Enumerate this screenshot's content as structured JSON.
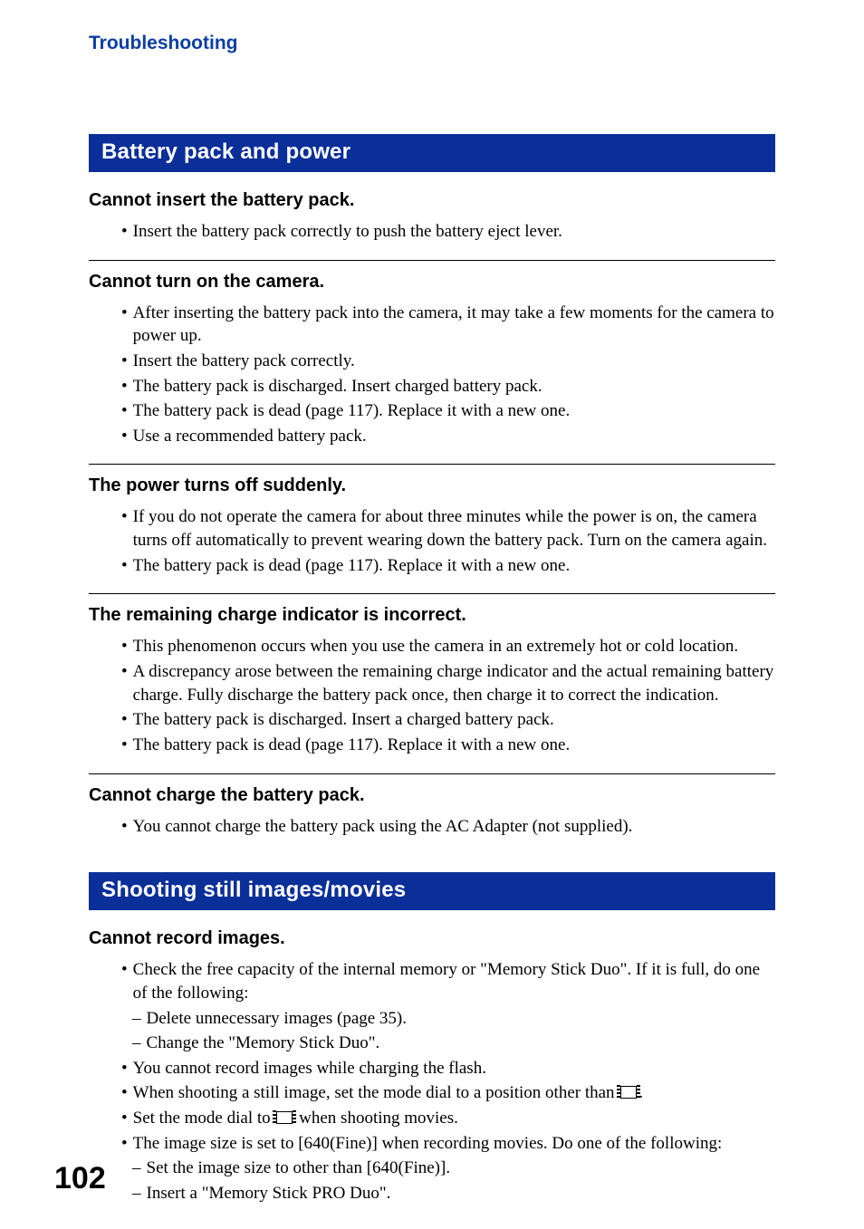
{
  "colors": {
    "brand_blue_text": "#0b3ea2",
    "section_bar_bg": "#0b2f99",
    "section_bar_text": "#ffffff",
    "body_text": "#000000",
    "background": "#ffffff",
    "rule": "#000000"
  },
  "typography": {
    "breadcrumb_fontsize_pt": 16,
    "section_bar_fontsize_pt": 18,
    "issue_title_fontsize_pt": 15,
    "body_fontsize_pt": 14,
    "page_number_fontsize_pt": 26,
    "heading_family": "Arial",
    "body_family": "Times New Roman"
  },
  "page": {
    "breadcrumb": "Troubleshooting",
    "number": "102"
  },
  "sections": [
    {
      "title": "Battery pack and power",
      "issues": [
        {
          "title": "Cannot insert the battery pack.",
          "bullets": [
            {
              "text": "Insert the battery pack correctly to push the battery eject lever."
            }
          ],
          "rule_after": true
        },
        {
          "title": "Cannot turn on the camera.",
          "bullets": [
            {
              "text": "After inserting the battery pack into the camera, it may take a few moments for the camera to power up."
            },
            {
              "text": "Insert the battery pack correctly."
            },
            {
              "text": "The battery pack is discharged. Insert charged battery pack."
            },
            {
              "text": "The battery pack is dead (page 117). Replace it with a new one."
            },
            {
              "text": "Use a recommended battery pack."
            }
          ],
          "rule_after": true
        },
        {
          "title": "The power turns off suddenly.",
          "bullets": [
            {
              "text": "If you do not operate the camera for about three minutes while the power is on, the camera turns off automatically to prevent wearing down the battery pack. Turn on the camera again."
            },
            {
              "text": "The battery pack is dead (page 117). Replace it with a new one."
            }
          ],
          "rule_after": true
        },
        {
          "title": "The remaining charge indicator is incorrect.",
          "bullets": [
            {
              "text": "This phenomenon occurs when you use the camera in an extremely hot or cold location."
            },
            {
              "text": "A discrepancy arose between the remaining charge indicator and the actual remaining battery charge. Fully discharge the battery pack once, then charge it to correct the indication."
            },
            {
              "text": "The battery pack is discharged. Insert a charged battery pack."
            },
            {
              "text": "The battery pack is dead (page 117). Replace it with a new one."
            }
          ],
          "rule_after": true
        },
        {
          "title": "Cannot charge the battery pack.",
          "bullets": [
            {
              "text": "You cannot charge the battery pack using the AC Adapter (not supplied)."
            }
          ],
          "rule_after": false
        }
      ]
    },
    {
      "title": "Shooting still images/movies",
      "issues": [
        {
          "title": "Cannot record images.",
          "bullets": [
            {
              "text": "Check the free capacity of the internal memory or \"Memory Stick Duo\". If it is full, do one of the following:",
              "sub": [
                "Delete unnecessary images (page 35).",
                "Change the \"Memory Stick Duo\"."
              ]
            },
            {
              "text": "You cannot record images while charging the flash."
            },
            {
              "text_pre": "When shooting a still image, set the mode dial to a position other than ",
              "icon": "movie-mode-icon",
              "text_post": "."
            },
            {
              "text_pre": "Set the mode dial to ",
              "icon": "movie-mode-icon",
              "text_post": " when shooting movies."
            },
            {
              "text": "The image size is set to [640(Fine)] when recording movies. Do one of the following:",
              "sub": [
                "Set the image size to other than [640(Fine)].",
                "Insert a \"Memory Stick PRO Duo\"."
              ]
            }
          ],
          "rule_after": false
        }
      ]
    }
  ]
}
